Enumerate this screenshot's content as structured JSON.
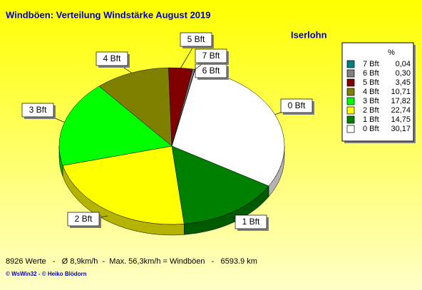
{
  "chart_data": {
    "type": "pie",
    "title": "Windböen: Verteilung Windstärke  August 2019",
    "subtitle": "Iserlohn",
    "legend_header": "%",
    "categories": [
      "7 Bft",
      "6 Bft",
      "5 Bft",
      "4 Bft",
      "3 Bft",
      "2 Bft",
      "1 Bft",
      "0 Bft"
    ],
    "values": [
      0.04,
      0.3,
      3.45,
      10.71,
      17.82,
      22.74,
      14.75,
      30.17
    ],
    "value_labels": [
      "0,04",
      "0,30",
      "3,45",
      "10,71",
      "17,82",
      "22,74",
      "14,75",
      "30,17"
    ],
    "colors": [
      "#008080",
      "#808080",
      "#800000",
      "#808000",
      "#00ff00",
      "#ffff00",
      "#008000",
      "#ffffff"
    ],
    "legend": "right",
    "footer": "8926 Werte   -   Ø 8,9km/h  -  Max. 56,3km/h = Windböen   -   6593.9 km",
    "credits": "© WsWin32  -  © Heiko Blödorn"
  }
}
